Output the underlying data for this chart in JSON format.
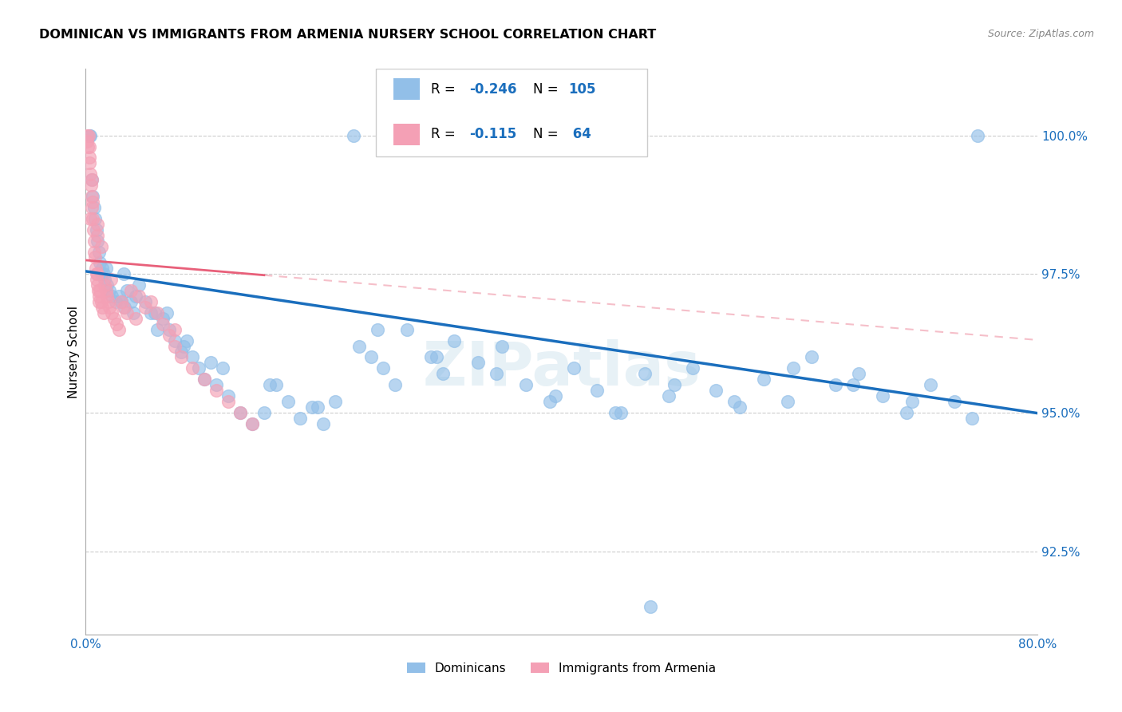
{
  "title": "DOMINICAN VS IMMIGRANTS FROM ARMENIA NURSERY SCHOOL CORRELATION CHART",
  "source": "Source: ZipAtlas.com",
  "ylabel": "Nursery School",
  "legend_label1": "Dominicans",
  "legend_label2": "Immigrants from Armenia",
  "blue_color": "#92bfe8",
  "pink_color": "#f4a0b5",
  "line_blue": "#1a6ebd",
  "line_pink": "#e8607a",
  "line_dashed_color": "#e8607a",
  "text_color_blue": "#1a6ebd",
  "watermark": "ZIPatlas",
  "xlim": [
    0.0,
    80.0
  ],
  "ylim": [
    91.0,
    101.2
  ],
  "blue_reg_intercept": 97.55,
  "blue_reg_slope": -0.032,
  "pink_reg_intercept": 97.75,
  "pink_reg_slope": -0.018,
  "blue_x": [
    0.3,
    0.4,
    22.5,
    28.0,
    36.5,
    75.0,
    0.5,
    0.6,
    0.7,
    0.8,
    0.9,
    1.0,
    1.1,
    1.2,
    1.3,
    1.4,
    1.5,
    1.6,
    1.7,
    1.8,
    2.0,
    2.2,
    2.5,
    2.8,
    3.0,
    3.3,
    3.5,
    3.8,
    4.0,
    4.2,
    4.5,
    5.0,
    5.5,
    6.0,
    6.5,
    7.0,
    7.5,
    8.0,
    8.5,
    9.0,
    9.5,
    10.0,
    10.5,
    11.0,
    12.0,
    13.0,
    14.0,
    15.0,
    16.0,
    17.0,
    18.0,
    19.0,
    20.0,
    21.0,
    23.0,
    24.0,
    25.0,
    26.0,
    27.0,
    29.0,
    30.0,
    31.0,
    33.0,
    35.0,
    37.0,
    39.0,
    41.0,
    43.0,
    45.0,
    47.0,
    49.0,
    51.0,
    53.0,
    55.0,
    57.0,
    59.0,
    61.0,
    63.0,
    65.0,
    67.0,
    69.0,
    71.0,
    73.0,
    5.8,
    8.2,
    11.5,
    15.5,
    19.5,
    24.5,
    29.5,
    34.5,
    39.5,
    44.5,
    49.5,
    54.5,
    59.5,
    64.5,
    69.5,
    74.5,
    3.2,
    6.8,
    47.5
  ],
  "blue_y": [
    100.0,
    100.0,
    100.0,
    100.0,
    100.0,
    100.0,
    99.2,
    98.9,
    98.7,
    98.5,
    98.3,
    98.1,
    97.9,
    97.7,
    97.5,
    97.6,
    97.5,
    97.4,
    97.6,
    97.3,
    97.2,
    97.1,
    97.0,
    97.1,
    97.0,
    96.9,
    97.2,
    97.0,
    96.8,
    97.1,
    97.3,
    97.0,
    96.8,
    96.5,
    96.7,
    96.5,
    96.3,
    96.1,
    96.3,
    96.0,
    95.8,
    95.6,
    95.9,
    95.5,
    95.3,
    95.0,
    94.8,
    95.0,
    95.5,
    95.2,
    94.9,
    95.1,
    94.8,
    95.2,
    96.2,
    96.0,
    95.8,
    95.5,
    96.5,
    96.0,
    95.7,
    96.3,
    95.9,
    96.2,
    95.5,
    95.2,
    95.8,
    95.4,
    95.0,
    95.7,
    95.3,
    95.8,
    95.4,
    95.1,
    95.6,
    95.2,
    96.0,
    95.5,
    95.7,
    95.3,
    95.0,
    95.5,
    95.2,
    96.8,
    96.2,
    95.8,
    95.5,
    95.1,
    96.5,
    96.0,
    95.7,
    95.3,
    95.0,
    95.5,
    95.2,
    95.8,
    95.5,
    95.2,
    94.9,
    97.5,
    96.8,
    91.5
  ],
  "pink_x": [
    0.1,
    0.15,
    0.2,
    0.25,
    0.3,
    0.3,
    0.35,
    0.4,
    0.45,
    0.5,
    0.5,
    0.55,
    0.6,
    0.65,
    0.7,
    0.75,
    0.8,
    0.85,
    0.9,
    0.95,
    1.0,
    1.0,
    1.05,
    1.1,
    1.15,
    1.2,
    1.3,
    1.4,
    1.5,
    1.6,
    1.7,
    1.8,
    1.9,
    2.0,
    2.1,
    2.2,
    2.4,
    2.6,
    2.8,
    3.0,
    3.2,
    3.5,
    3.8,
    4.2,
    4.5,
    5.0,
    5.5,
    6.0,
    6.5,
    7.0,
    7.5,
    8.0,
    9.0,
    10.0,
    11.0,
    12.0,
    13.0,
    14.0,
    0.4,
    0.6,
    1.0,
    1.0,
    1.3,
    7.5
  ],
  "pink_y": [
    100.0,
    99.9,
    99.8,
    100.0,
    99.6,
    99.8,
    99.5,
    99.3,
    99.1,
    98.9,
    99.2,
    98.7,
    98.5,
    98.3,
    98.1,
    97.9,
    97.8,
    97.6,
    97.5,
    97.4,
    97.3,
    97.5,
    97.2,
    97.1,
    97.0,
    97.2,
    97.0,
    96.9,
    96.8,
    97.3,
    97.2,
    97.1,
    97.0,
    96.9,
    97.4,
    96.8,
    96.7,
    96.6,
    96.5,
    97.0,
    96.9,
    96.8,
    97.2,
    96.7,
    97.1,
    96.9,
    97.0,
    96.8,
    96.6,
    96.4,
    96.2,
    96.0,
    95.8,
    95.6,
    95.4,
    95.2,
    95.0,
    94.8,
    98.5,
    98.8,
    98.4,
    98.2,
    98.0,
    96.5
  ]
}
